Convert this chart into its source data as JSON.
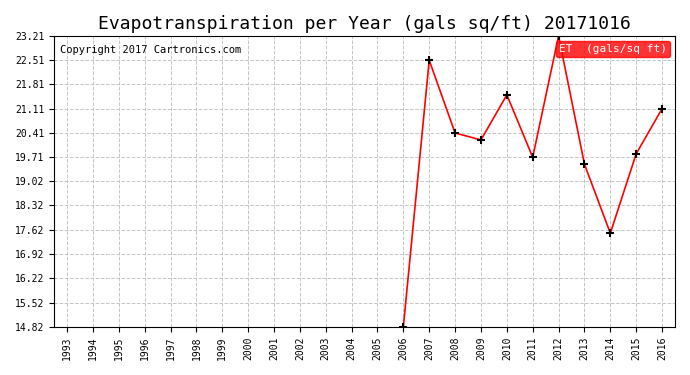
{
  "title": "Evapotranspiration per Year (gals sq/ft) 20171016",
  "copyright": "Copyright 2017 Cartronics.com",
  "legend_label": "ET  (gals/sq ft)",
  "years": [
    1993,
    1994,
    1995,
    1996,
    1997,
    1998,
    1999,
    2000,
    2001,
    2002,
    2003,
    2004,
    2005,
    2006,
    2007,
    2008,
    2009,
    2010,
    2011,
    2012,
    2013,
    2014,
    2015,
    2016
  ],
  "values": [
    null,
    null,
    null,
    null,
    null,
    null,
    null,
    null,
    null,
    null,
    null,
    null,
    null,
    14.82,
    22.51,
    20.41,
    20.21,
    21.51,
    19.71,
    23.21,
    19.51,
    17.52,
    19.81,
    21.11
  ],
  "line_color": "#ff0000",
  "marker_color": "#000000",
  "background_color": "#ffffff",
  "grid_color": "#c0c0c0",
  "yticks": [
    14.82,
    15.52,
    16.22,
    16.92,
    17.62,
    18.32,
    19.02,
    19.71,
    20.41,
    21.11,
    21.81,
    22.51,
    23.21
  ],
  "ylim": [
    14.82,
    23.21
  ],
  "legend_bg": "#ff0000",
  "legend_text_color": "#ffffff",
  "title_fontsize": 13,
  "copyright_fontsize": 7.5
}
